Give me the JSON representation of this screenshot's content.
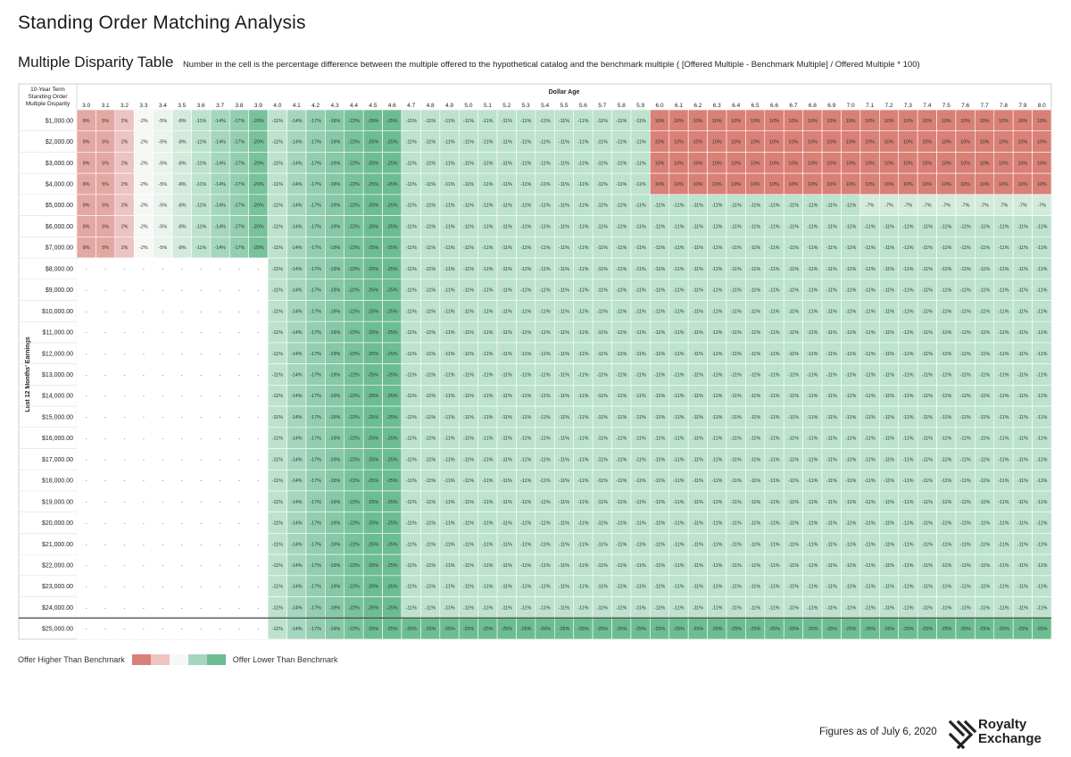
{
  "header": {
    "title": "Standing Order Matching Analysis",
    "subtitle": "Multiple Disparity Table",
    "description": "Number in the cell is the percentage difference between the multiple offered to the hypothetical catalog and the benchmark multiple ( [Offered Multiple - Benchmark Multiple] / Offered Multiple * 100)"
  },
  "chart_data": {
    "type": "heatmap",
    "corner_label": [
      "10-Year Term",
      "Standing Order",
      "Multiple Disparity"
    ],
    "column_axis_label": "Dollar Age",
    "row_axis_label": "Last 12 Months' Earnings",
    "columns": [
      "3.0",
      "3.1",
      "3.2",
      "3.3",
      "3.4",
      "3.5",
      "3.6",
      "3.7",
      "3.8",
      "3.9",
      "4.0",
      "4.1",
      "4.2",
      "4.3",
      "4.4",
      "4.5",
      "4.6",
      "4.7",
      "4.8",
      "4.9",
      "5.0",
      "5.1",
      "5.2",
      "5.3",
      "5.4",
      "5.5",
      "5.6",
      "5.7",
      "5.8",
      "5.9",
      "6.0",
      "6.1",
      "6.2",
      "6.3",
      "6.4",
      "6.5",
      "6.6",
      "6.7",
      "6.8",
      "6.9",
      "7.0",
      "7.1",
      "7.2",
      "7.3",
      "7.4",
      "7.5",
      "7.6",
      "7.7",
      "7.8",
      "7.9",
      "8.0"
    ],
    "rows": [
      "$1,000.00",
      "$2,000.00",
      "$3,000.00",
      "$4,000.00",
      "$5,000.00",
      "$6,000.00",
      "$7,000.00",
      "$8,000.00",
      "$9,000.00",
      "$10,000.00",
      "$11,000.00",
      "$12,000.00",
      "$13,000.00",
      "$14,000.00",
      "$15,000.00",
      "$16,000.00",
      "$17,000.00",
      "$18,000.00",
      "$19,000.00",
      "$20,000.00",
      "$21,000.00",
      "$22,000.00",
      "$23,000.00",
      "$24,000.00",
      "$25,000.00"
    ],
    "empty_cell_label": "-",
    "value_pattern": {
      "cols_3_0_to_3_9_rows_1000_to_7000": [
        8,
        5,
        2,
        -2,
        -5,
        -8,
        -11,
        -14,
        -17,
        -20
      ],
      "cols_3_0_to_3_9_rows_8000_to_25000": null,
      "cols_4_0_to_4_6_all_rows": [
        -11,
        -14,
        -17,
        -19,
        -22,
        -25,
        -25
      ],
      "cols_4_7_to_5_9_rows_1000_to_24000": -11,
      "cols_6_0_to_8_0_rows_1000_to_4000": 10,
      "cols_7_1_to_8_0_row_5000": -7,
      "cols_6_0_to_8_0_rows_5000_to_24000_other": -11,
      "cols_4_7_to_8_0_row_25000": -25
    },
    "color_scale": {
      "high": "#d98077",
      "mid_high": "#ecc4c1",
      "neutral": "#f6f8f6",
      "mid_low": "#a6d6bf",
      "low": "#6dbd92"
    }
  },
  "legend": {
    "high_label": "Offer Higher Than Benchmark",
    "low_label": "Offer Lower Than Benchmark",
    "swatches": [
      "#d98077",
      "#ecc4c1",
      "#f6f8f6",
      "#a6d6bf",
      "#6dbd92"
    ]
  },
  "footer": {
    "date": "Figures as of July 6, 2020",
    "brand_line1": "Royalty",
    "brand_line2": "Exchange"
  }
}
